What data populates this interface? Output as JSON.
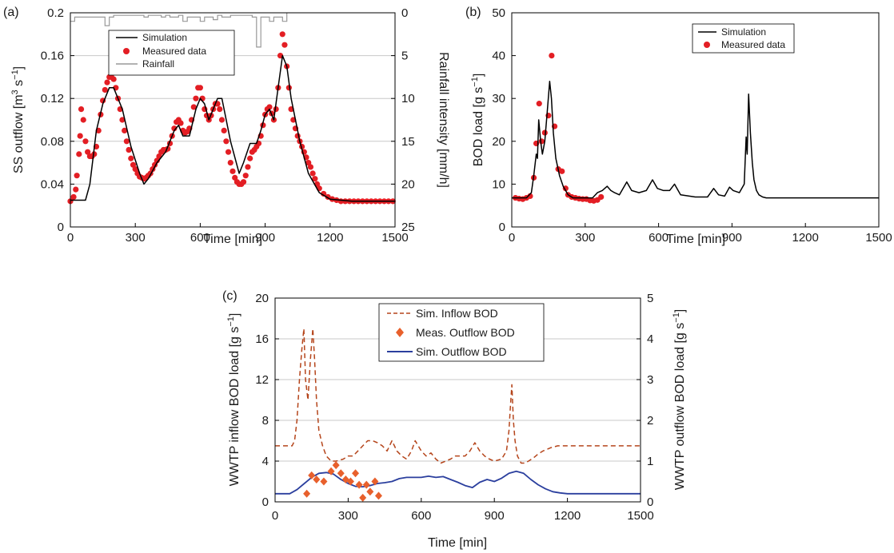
{
  "chart_data": [
    {
      "panel_label": "(a)",
      "type": "line",
      "xlabel": "Time [min]",
      "ylabel_left": "SS outflow [m",
      "ylabel_left_sup1": "3",
      "ylabel_left_mid": " s",
      "ylabel_left_sup2": "−1",
      "ylabel_left_end": "]",
      "ylabel_right": "Rainfall intensity [mm/h]",
      "xlim": [
        0,
        1500
      ],
      "ylim_left": [
        0,
        0.2
      ],
      "ylim_right": [
        25,
        0
      ],
      "xticks": [
        "0",
        "300",
        "600",
        "900",
        "1200",
        "1500"
      ],
      "yticks_left": [
        "0",
        "0.04",
        "0.08",
        "0.12",
        "0.16",
        "0.2"
      ],
      "yticks_right": [
        "25",
        "20",
        "15",
        "10",
        "5",
        "0"
      ],
      "grid": "horizontal",
      "legend_position": "top-left",
      "series": [
        {
          "name": "Simulation",
          "kind": "line",
          "color": "#000000",
          "x": [
            0,
            70,
            90,
            120,
            150,
            180,
            200,
            240,
            280,
            320,
            340,
            360,
            400,
            440,
            480,
            500,
            520,
            550,
            580,
            600,
            620,
            640,
            660,
            680,
            700,
            740,
            780,
            800,
            830,
            860,
            880,
            900,
            920,
            940,
            960,
            980,
            1000,
            1020,
            1060,
            1100,
            1150,
            1200,
            1300,
            1500
          ],
          "y": [
            0.025,
            0.025,
            0.04,
            0.09,
            0.115,
            0.13,
            0.13,
            0.11,
            0.075,
            0.05,
            0.04,
            0.045,
            0.06,
            0.07,
            0.09,
            0.095,
            0.085,
            0.085,
            0.11,
            0.12,
            0.115,
            0.1,
            0.11,
            0.12,
            0.12,
            0.08,
            0.05,
            0.06,
            0.078,
            0.078,
            0.09,
            0.105,
            0.11,
            0.1,
            0.13,
            0.16,
            0.15,
            0.12,
            0.08,
            0.05,
            0.032,
            0.026,
            0.024,
            0.024
          ]
        },
        {
          "name": "Measured data",
          "kind": "markers",
          "color": "#e31e24",
          "x": [
            0,
            15,
            25,
            30,
            40,
            45,
            50,
            60,
            70,
            80,
            90,
            100,
            110,
            120,
            130,
            140,
            150,
            160,
            170,
            180,
            190,
            200,
            210,
            220,
            230,
            240,
            250,
            260,
            270,
            280,
            290,
            300,
            310,
            320,
            330,
            340,
            350,
            360,
            370,
            380,
            390,
            400,
            410,
            420,
            430,
            440,
            450,
            460,
            470,
            480,
            490,
            500,
            510,
            520,
            530,
            540,
            550,
            560,
            570,
            580,
            590,
            600,
            610,
            620,
            630,
            640,
            650,
            660,
            670,
            680,
            690,
            700,
            710,
            720,
            730,
            740,
            750,
            760,
            770,
            780,
            790,
            800,
            810,
            820,
            830,
            840,
            850,
            860,
            870,
            880,
            890,
            900,
            910,
            920,
            930,
            940,
            950,
            960,
            970,
            980,
            990,
            1000,
            1010,
            1020,
            1030,
            1040,
            1050,
            1060,
            1070,
            1080,
            1090,
            1100,
            1110,
            1120,
            1130,
            1140,
            1150,
            1170,
            1190,
            1210,
            1230,
            1250,
            1270,
            1290,
            1310,
            1330,
            1350,
            1370,
            1390,
            1410,
            1430,
            1450,
            1470,
            1490
          ],
          "y": [
            0.024,
            0.028,
            0.035,
            0.048,
            0.068,
            0.085,
            0.11,
            0.1,
            0.08,
            0.07,
            0.066,
            0.066,
            0.068,
            0.075,
            0.09,
            0.105,
            0.118,
            0.128,
            0.135,
            0.14,
            0.14,
            0.138,
            0.13,
            0.12,
            0.11,
            0.1,
            0.09,
            0.08,
            0.072,
            0.064,
            0.058,
            0.054,
            0.05,
            0.047,
            0.046,
            0.045,
            0.046,
            0.048,
            0.05,
            0.054,
            0.058,
            0.062,
            0.066,
            0.07,
            0.072,
            0.072,
            0.073,
            0.078,
            0.085,
            0.092,
            0.098,
            0.1,
            0.097,
            0.09,
            0.088,
            0.089,
            0.092,
            0.1,
            0.112,
            0.12,
            0.13,
            0.13,
            0.12,
            0.11,
            0.104,
            0.1,
            0.104,
            0.11,
            0.115,
            0.115,
            0.11,
            0.1,
            0.09,
            0.08,
            0.07,
            0.06,
            0.052,
            0.046,
            0.042,
            0.04,
            0.04,
            0.042,
            0.048,
            0.056,
            0.064,
            0.07,
            0.072,
            0.075,
            0.078,
            0.085,
            0.095,
            0.105,
            0.11,
            0.112,
            0.106,
            0.1,
            0.11,
            0.13,
            0.16,
            0.18,
            0.17,
            0.15,
            0.13,
            0.11,
            0.1,
            0.092,
            0.085,
            0.08,
            0.075,
            0.07,
            0.065,
            0.06,
            0.056,
            0.05,
            0.045,
            0.04,
            0.036,
            0.031,
            0.028,
            0.026,
            0.025,
            0.024,
            0.024,
            0.024,
            0.024,
            0.024,
            0.024,
            0.024,
            0.024,
            0.024,
            0.024,
            0.024,
            0.024,
            0.024
          ]
        },
        {
          "name": "Rainfall",
          "kind": "bars-from-top",
          "color": "#999999",
          "x": [
            0,
            20,
            40,
            60,
            80,
            100,
            120,
            140,
            160,
            180,
            200,
            220,
            240,
            260,
            280,
            300,
            320,
            340,
            360,
            380,
            400,
            420,
            440,
            460,
            480,
            500,
            520,
            540,
            560,
            580,
            600,
            620,
            640,
            660,
            680,
            700,
            720,
            740,
            760,
            780,
            800,
            820,
            840,
            860,
            880,
            900,
            920,
            940,
            960,
            980,
            1000
          ],
          "y": [
            1,
            0.5,
            0.5,
            0.5,
            0.5,
            0.5,
            0.5,
            0.5,
            1.5,
            0.5,
            0.3,
            0.3,
            0.3,
            0.3,
            0.3,
            0.3,
            0.3,
            0.5,
            0.3,
            0.3,
            0.3,
            0.5,
            0.3,
            0.5,
            0.5,
            0.3,
            1,
            0.5,
            0.5,
            0.5,
            1,
            0.5,
            0.5,
            0.8,
            0.3,
            0.5,
            0.5,
            0.3,
            0.3,
            0.3,
            0.3,
            0.3,
            0.5,
            4,
            0.5,
            0.5,
            1,
            0.5,
            0.5,
            1,
            0
          ]
        }
      ]
    },
    {
      "panel_label": "(b)",
      "type": "line",
      "xlabel": "Time [min]",
      "ylabel_left": "BOD load [g s",
      "ylabel_left_sup": "−1",
      "ylabel_left_end": "]",
      "xlim": [
        0,
        1500
      ],
      "ylim": [
        0,
        50
      ],
      "xticks": [
        "0",
        "300",
        "600",
        "900",
        "1200",
        "1500"
      ],
      "yticks": [
        "0",
        "10",
        "20",
        "30",
        "40",
        "50"
      ],
      "grid": "none",
      "legend_position": "top-right",
      "series": [
        {
          "name": "Simulation",
          "kind": "line",
          "color": "#000000",
          "x": [
            0,
            60,
            80,
            90,
            100,
            105,
            110,
            118,
            125,
            135,
            145,
            155,
            162,
            170,
            180,
            195,
            210,
            230,
            250,
            280,
            330,
            350,
            370,
            390,
            405,
            420,
            440,
            470,
            490,
            520,
            550,
            575,
            595,
            620,
            645,
            665,
            690,
            750,
            800,
            825,
            845,
            870,
            890,
            905,
            930,
            950,
            958,
            962,
            968,
            975,
            983,
            990,
            1000,
            1010,
            1025,
            1040,
            1100,
            1200,
            1300,
            1500
          ],
          "y": [
            6.8,
            6.8,
            8,
            12,
            17,
            16,
            25,
            20,
            17,
            20,
            27,
            34,
            30,
            22,
            16,
            12,
            9.5,
            7.5,
            6.8,
            6.8,
            6.8,
            8,
            8.5,
            9.5,
            8.5,
            8,
            7.5,
            10.5,
            8.5,
            8,
            8.5,
            11,
            9,
            8.5,
            8.5,
            10,
            7.5,
            7,
            7,
            9,
            7.5,
            7.2,
            9.3,
            8.5,
            8,
            10,
            21,
            17,
            31,
            22,
            15,
            11,
            8.5,
            7.5,
            7,
            6.8,
            6.8,
            6.8,
            6.8,
            6.8
          ]
        },
        {
          "name": "Measured data",
          "kind": "markers",
          "color": "#e31e24",
          "x": [
            15,
            30,
            45,
            60,
            75,
            90,
            100,
            112,
            122,
            135,
            150,
            163,
            175,
            190,
            205,
            220,
            230,
            245,
            260,
            275,
            290,
            305,
            320,
            335,
            350,
            365
          ],
          "y": [
            6.8,
            6.6,
            6.5,
            6.8,
            7.2,
            11.5,
            19.5,
            28.8,
            20,
            22,
            26,
            40,
            23.5,
            13.5,
            13,
            9,
            7.5,
            7,
            6.8,
            6.6,
            6.5,
            6.5,
            6.2,
            6.1,
            6.3,
            7
          ]
        }
      ]
    },
    {
      "panel_label": "(c)",
      "type": "line",
      "xlabel": "Time [min]",
      "ylabel_left": "WWTP inflow BOD load [g s",
      "ylabel_left_sup": "−1",
      "ylabel_left_end": "]",
      "ylabel_right": "WWTP outflow BOD load [g s",
      "ylabel_right_sup": "−1",
      "ylabel_right_end": "]",
      "xlim": [
        0,
        1500
      ],
      "ylim_left": [
        0,
        20
      ],
      "ylim_right": [
        0,
        5
      ],
      "xticks": [
        "0",
        "300",
        "600",
        "900",
        "1200",
        "1500"
      ],
      "yticks_left": [
        "0",
        "4",
        "8",
        "12",
        "16",
        "20"
      ],
      "yticks_right": [
        "0",
        "1",
        "2",
        "3",
        "4",
        "5"
      ],
      "grid": "horizontal",
      "legend_position": "top-center",
      "series": [
        {
          "name": "Sim. Inflow BOD",
          "kind": "dashed-line",
          "axis": "left",
          "color": "#b5451b",
          "x": [
            0,
            70,
            80,
            90,
            100,
            110,
            118,
            125,
            135,
            145,
            155,
            162,
            170,
            180,
            195,
            210,
            230,
            250,
            280,
            300,
            320,
            340,
            360,
            380,
            400,
            420,
            440,
            460,
            480,
            500,
            520,
            540,
            560,
            575,
            600,
            620,
            640,
            660,
            680,
            700,
            720,
            740,
            760,
            780,
            800,
            820,
            840,
            860,
            880,
            900,
            930,
            950,
            960,
            965,
            972,
            978,
            985,
            995,
            1010,
            1025,
            1040,
            1060,
            1080,
            1100,
            1130,
            1160,
            1200,
            1300,
            1500
          ],
          "y": [
            5.5,
            5.5,
            6,
            8,
            12,
            15,
            17,
            12,
            10,
            14,
            17,
            14,
            10,
            7,
            5.5,
            4.5,
            4,
            4,
            4.2,
            4.5,
            4.5,
            5,
            5.5,
            6,
            6,
            5.8,
            5.5,
            5,
            6,
            5,
            4.5,
            4.2,
            5,
            6,
            5,
            4.5,
            4.8,
            4.2,
            3.8,
            4,
            4.2,
            4.5,
            4.5,
            4.5,
            5,
            5.8,
            5,
            4.5,
            4.2,
            4,
            4.2,
            5,
            7,
            9,
            11.5,
            8,
            6,
            4.5,
            3.8,
            3.8,
            4,
            4.3,
            4.7,
            5,
            5.3,
            5.5,
            5.5,
            5.5,
            5.5
          ]
        },
        {
          "name": "Meas. Outflow BOD",
          "kind": "diamond-markers",
          "axis": "right",
          "color": "#e8602c",
          "x": [
            130,
            150,
            170,
            200,
            230,
            250,
            270,
            290,
            310,
            330,
            345,
            360,
            375,
            390,
            410,
            425
          ],
          "y": [
            0.2,
            0.65,
            0.55,
            0.5,
            0.75,
            0.9,
            0.7,
            0.55,
            0.5,
            0.7,
            0.42,
            0.1,
            0.42,
            0.25,
            0.5,
            0.15
          ]
        },
        {
          "name": "Sim. Outflow BOD",
          "kind": "line",
          "axis": "right",
          "color": "#2b3f9e",
          "x": [
            0,
            60,
            90,
            120,
            150,
            180,
            210,
            240,
            270,
            300,
            330,
            360,
            390,
            420,
            450,
            480,
            510,
            540,
            570,
            600,
            630,
            660,
            690,
            720,
            750,
            780,
            810,
            840,
            870,
            900,
            930,
            960,
            990,
            1020,
            1050,
            1080,
            1110,
            1140,
            1170,
            1200,
            1300,
            1500
          ],
          "y": [
            0.2,
            0.2,
            0.3,
            0.45,
            0.6,
            0.7,
            0.72,
            0.68,
            0.55,
            0.45,
            0.38,
            0.37,
            0.4,
            0.45,
            0.47,
            0.5,
            0.57,
            0.6,
            0.6,
            0.6,
            0.63,
            0.6,
            0.62,
            0.55,
            0.48,
            0.4,
            0.35,
            0.48,
            0.55,
            0.5,
            0.58,
            0.7,
            0.75,
            0.7,
            0.55,
            0.42,
            0.32,
            0.25,
            0.22,
            0.2,
            0.2,
            0.2
          ]
        }
      ]
    }
  ]
}
